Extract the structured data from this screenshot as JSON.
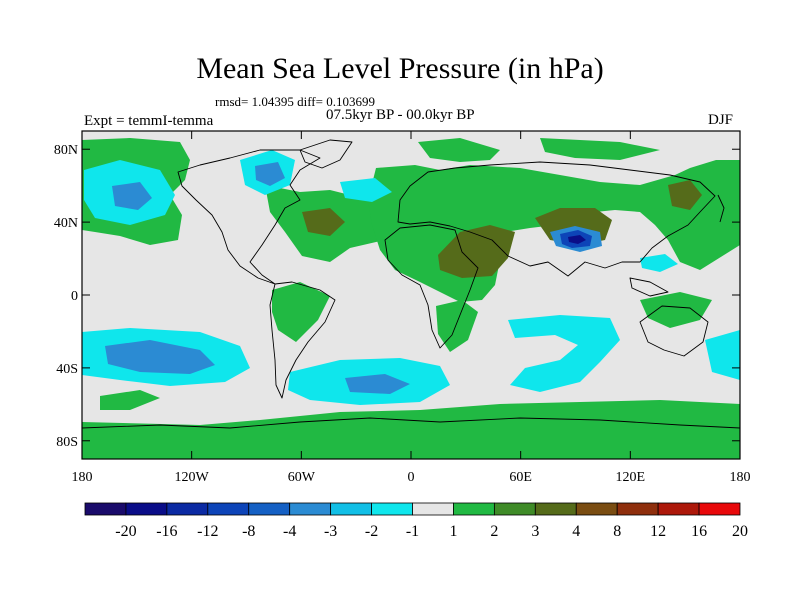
{
  "title": "Mean Sea Level Pressure (in hPa)",
  "stats": "rmsd= 1.04395  diff= 0.103699",
  "period": "07.5kyr BP - 00.0kyr BP",
  "experiment": "Expt = temmI-temma",
  "season": "DJF",
  "lat_ticks": [
    "80N",
    "40N",
    "0",
    "40S",
    "80S"
  ],
  "lon_ticks": [
    "180",
    "120W",
    "60W",
    "0",
    "60E",
    "120E",
    "180"
  ],
  "colorbar": {
    "labels": [
      "-20",
      "-16",
      "-12",
      "-8",
      "-4",
      "-3",
      "-2",
      "-1",
      "1",
      "2",
      "3",
      "4",
      "8",
      "12",
      "16",
      "20"
    ],
    "colors": [
      "#1a0b6b",
      "#0a0d88",
      "#0b2aa3",
      "#0d44b8",
      "#1560c4",
      "#2b8bd3",
      "#12bfe6",
      "#0fe6ec",
      "#e6e6e6",
      "#21b943",
      "#3f8b28",
      "#556b1a",
      "#7a4d12",
      "#8f2f0d",
      "#ad180a",
      "#e8080a"
    ]
  }
}
